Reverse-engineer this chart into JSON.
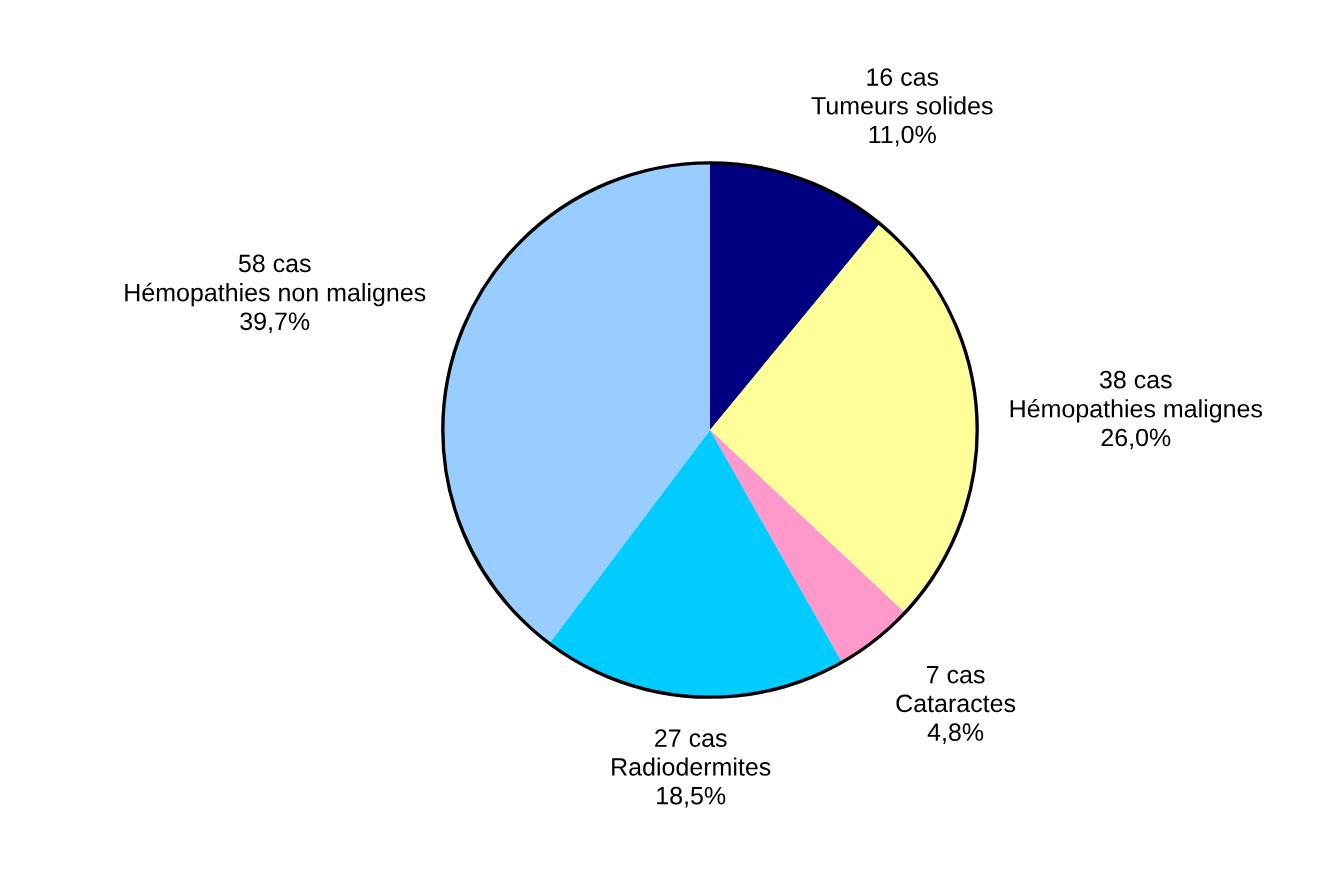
{
  "chart_data": {
    "type": "pie",
    "categories": [
      "Tumeurs solides",
      "Hémopathies malignes",
      "Cataractes",
      "Radiodermites",
      "Hémopathies non malignes"
    ],
    "values": [
      16,
      38,
      7,
      27,
      58
    ],
    "value_labels": [
      "16 cas",
      "38 cas",
      "7 cas",
      "27 cas",
      "58 cas"
    ],
    "annotations": [
      "11,0%",
      "26,0%",
      "4,8%",
      "18,5%",
      "39,7%"
    ],
    "colors": [
      "#000080",
      "#ffff99",
      "#ff99cc",
      "#00ccff",
      "#99ccff"
    ],
    "legend": false
  }
}
